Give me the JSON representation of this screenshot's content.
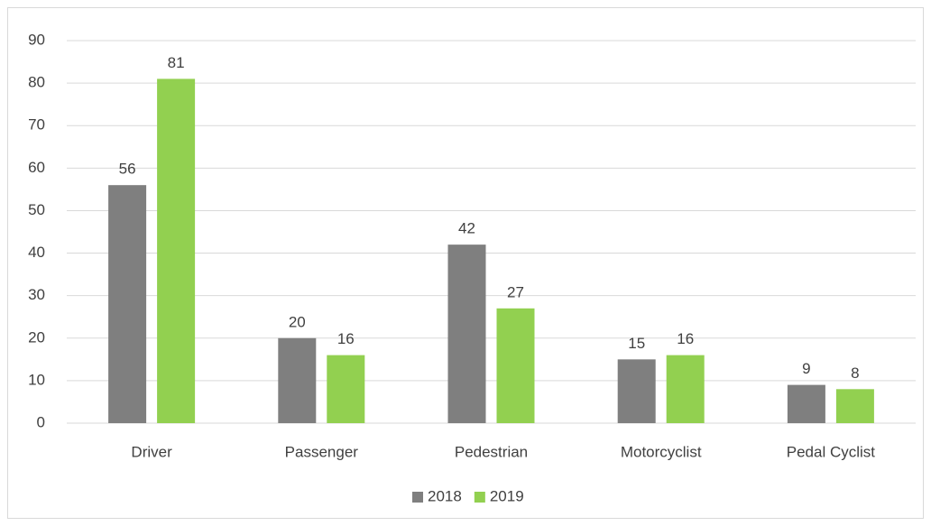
{
  "chart_data": {
    "type": "bar",
    "categories": [
      "Driver",
      "Passenger",
      "Pedestrian",
      "Motorcyclist",
      "Pedal Cyclist"
    ],
    "series": [
      {
        "name": "2018",
        "color": "#7f7f7f",
        "values": [
          56,
          20,
          42,
          15,
          9
        ]
      },
      {
        "name": "2019",
        "color": "#92d050",
        "values": [
          81,
          16,
          27,
          16,
          8
        ]
      }
    ],
    "ylim": [
      0,
      90
    ],
    "yticks": [
      0,
      10,
      20,
      30,
      40,
      50,
      60,
      70,
      80,
      90
    ],
    "grid": true,
    "legend": "bottom"
  }
}
